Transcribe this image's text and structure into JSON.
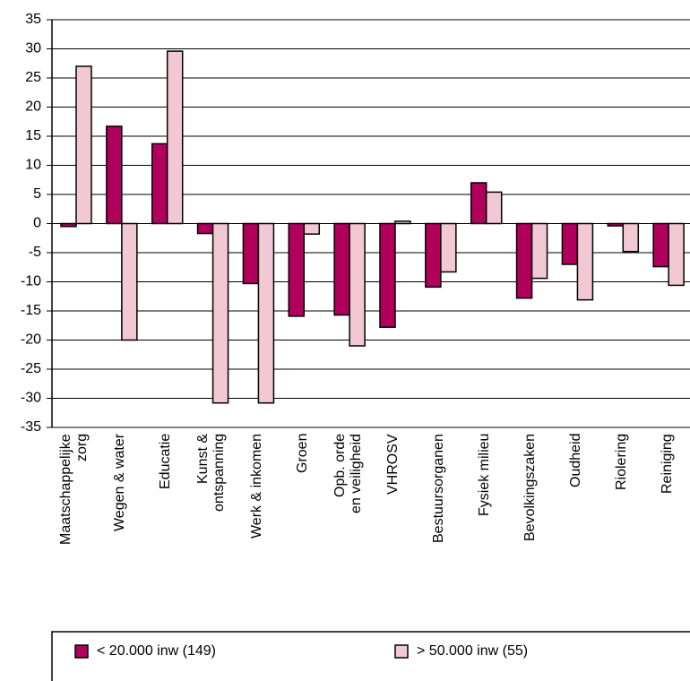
{
  "chart_data": {
    "type": "bar",
    "categories": [
      "Maatschappelijke\nzorg",
      "Wegen & water",
      "Educatie",
      "Kunst &\nontspanning",
      "Werk & inkomen",
      "Groen",
      "Opb. orde\nen veiligheid",
      "VHROSV",
      "Bestuursorganen",
      "Fysiek milieu",
      "Bevolkingszaken",
      "Oudheid",
      "Riolering",
      "Reiniging"
    ],
    "series": [
      {
        "name": "< 20.000 inw (149)",
        "color": "#b0005c",
        "values": [
          -0.5,
          16.7,
          13.7,
          -1.7,
          -10.3,
          -15.9,
          -15.7,
          -17.8,
          -10.9,
          7,
          -12.8,
          -7,
          -0.4,
          -7.4
        ]
      },
      {
        "name": "> 50.000 inw (55)",
        "color": "#f2c8d5",
        "values": [
          27,
          -20,
          29.6,
          -30.8,
          -30.8,
          -1.8,
          -21,
          0.4,
          -8.3,
          5.4,
          -9.4,
          -13.1,
          -4.8,
          -10.6
        ]
      }
    ],
    "ylim": [
      -35,
      35
    ],
    "yticks": [
      -35,
      -30,
      -25,
      -20,
      -15,
      -10,
      -5,
      0,
      5,
      10,
      15,
      20,
      25,
      30,
      35
    ],
    "grid": true
  }
}
